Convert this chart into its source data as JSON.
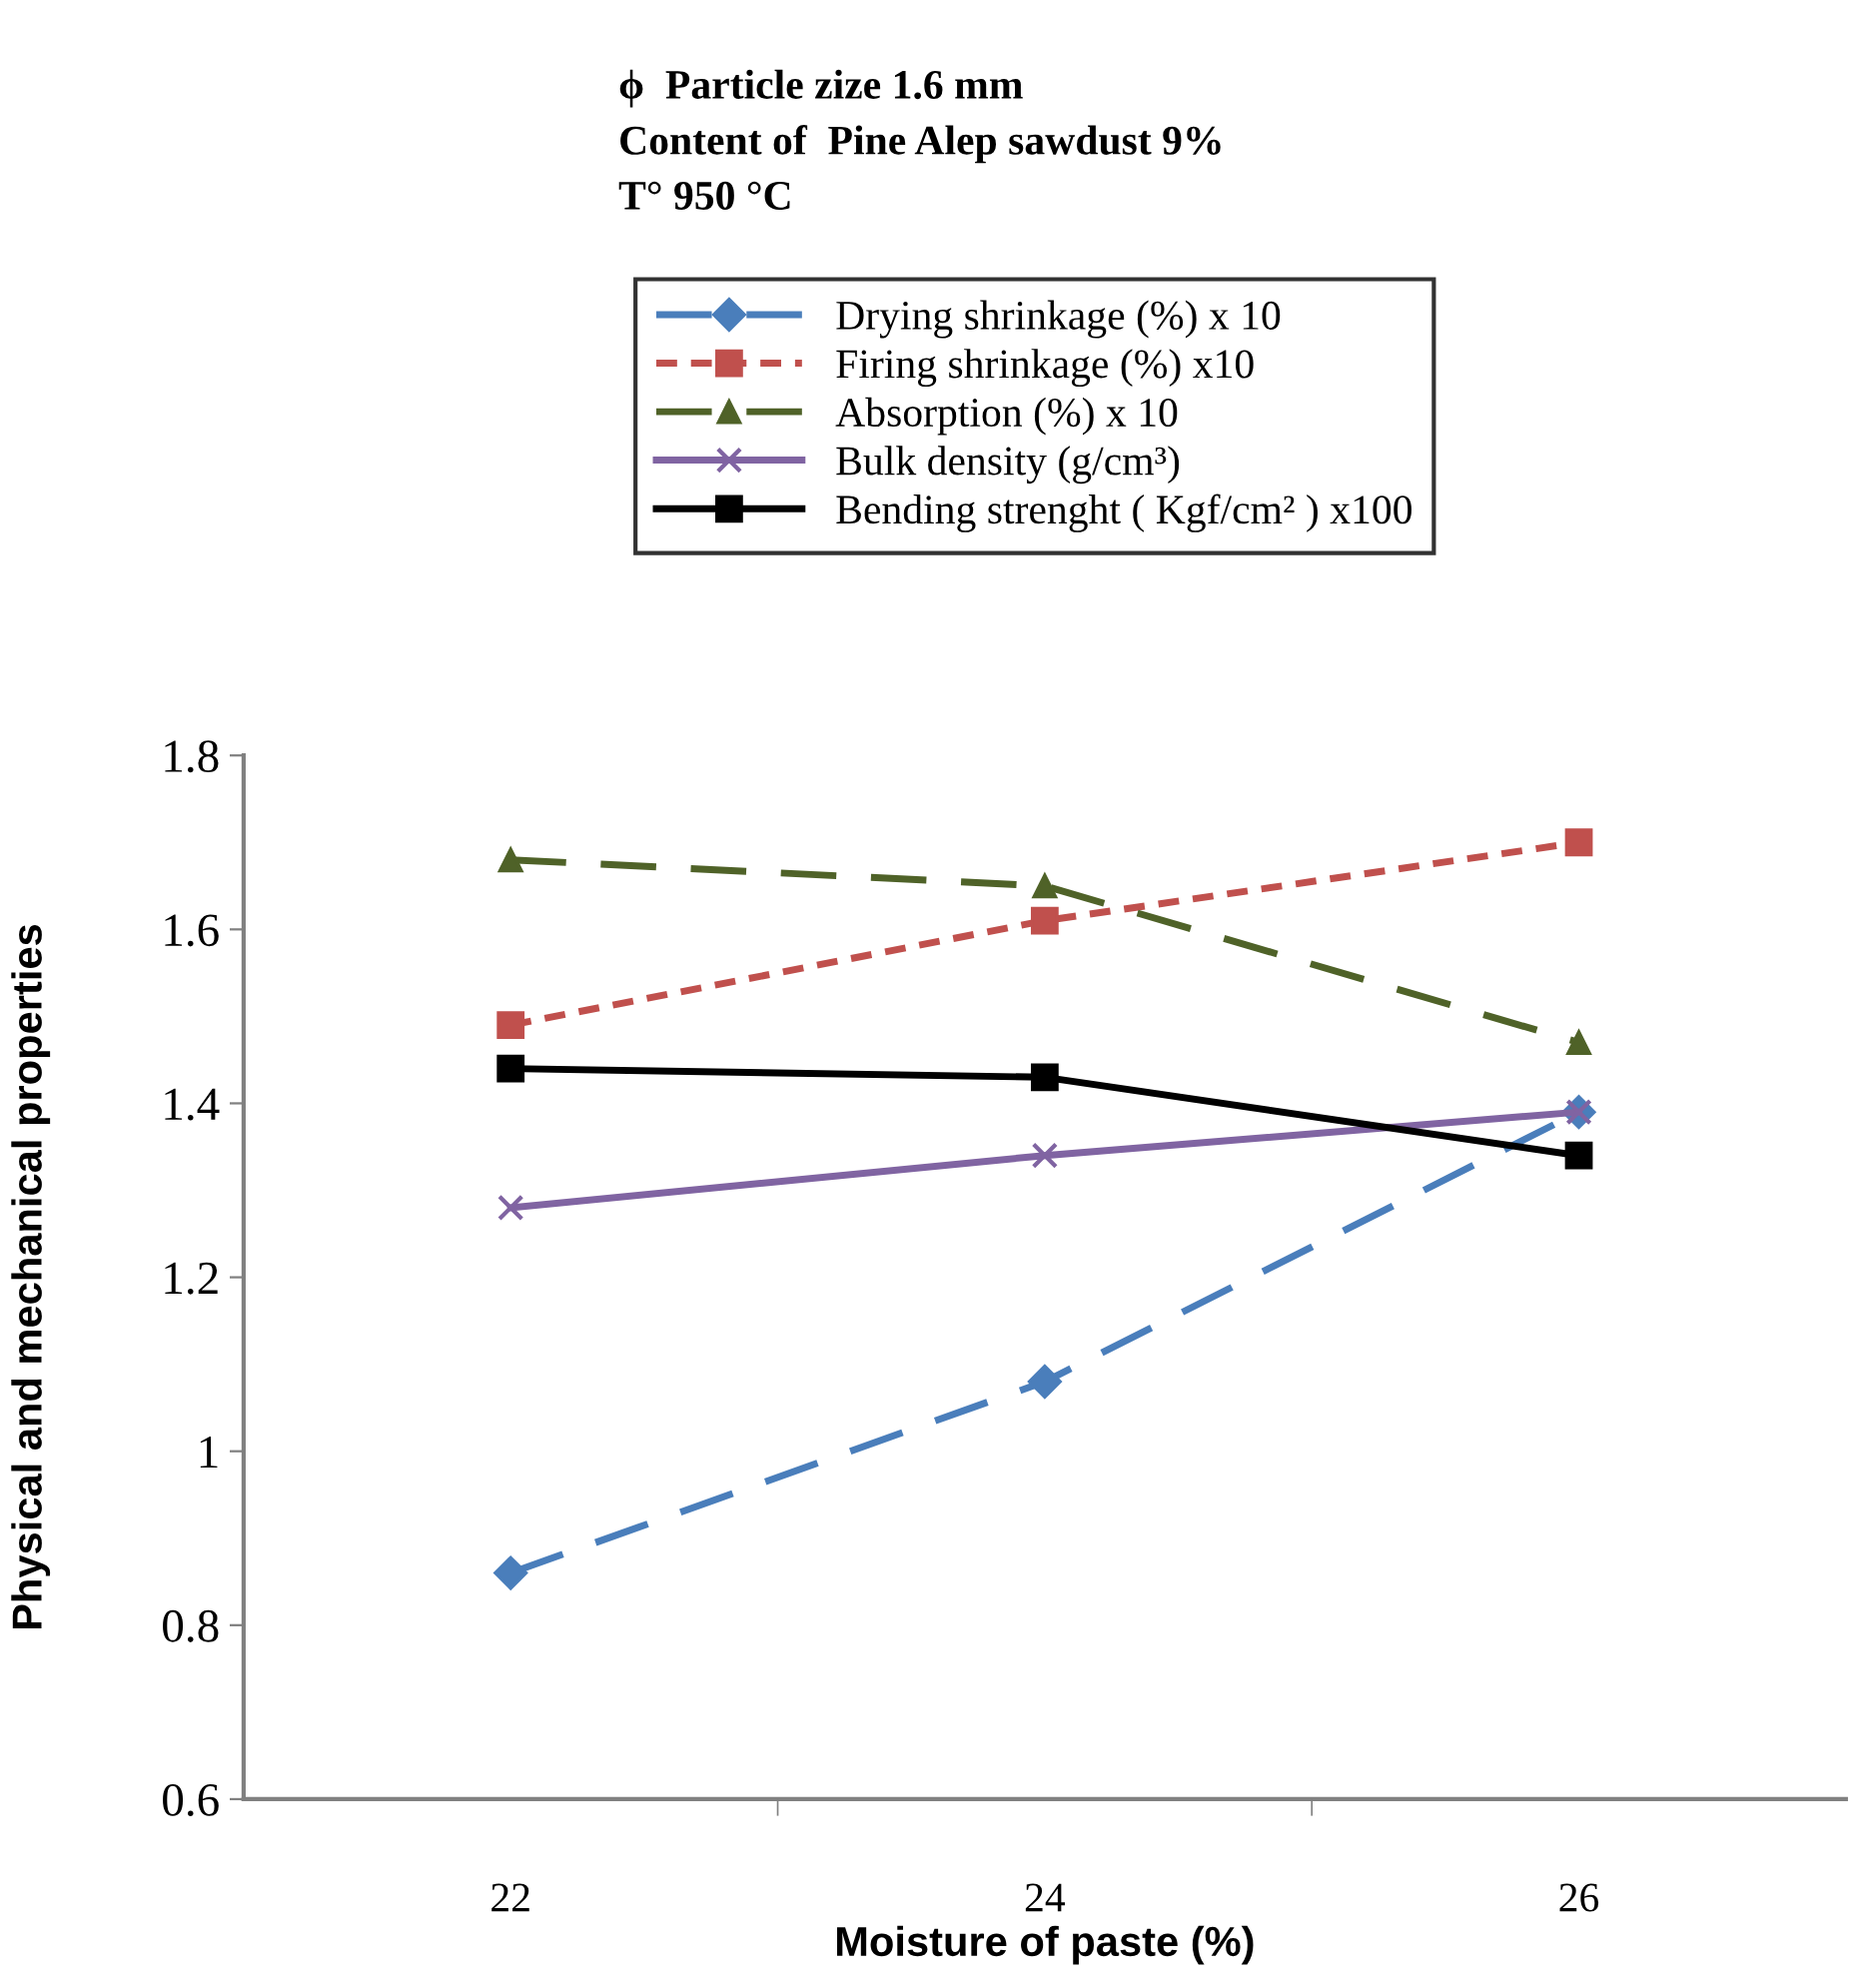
{
  "chart_data": {
    "type": "line",
    "title": "ϕ  Particle zize 1.6 mm\nContent of  Pine Alep sawdust 9%\nT° 950 °C",
    "xlabel": "Moisture of paste (%)",
    "ylabel": "Physical and mechanical properties",
    "categories": [
      "22",
      "24",
      "26"
    ],
    "ylim": [
      0.6,
      1.8
    ],
    "yticks": [
      0.6,
      0.8,
      1,
      1.2,
      1.4,
      1.6,
      1.8
    ],
    "legend": "top",
    "grid": false,
    "series": [
      {
        "name": "Drying shrinkage (%) x 10",
        "color": "#4a7ebb",
        "marker": "diamond",
        "line_style": "dashed",
        "values": [
          0.86,
          1.08,
          1.39
        ]
      },
      {
        "name": "Firing shrinkage (%) x10",
        "color": "#c0504d",
        "marker": "square",
        "line_style": "dotted",
        "values": [
          1.49,
          1.61,
          1.7
        ]
      },
      {
        "name": "Absorption (%) x 10",
        "color": "#4f6228",
        "marker": "triangle",
        "line_style": "dashed",
        "values": [
          1.68,
          1.65,
          1.47
        ]
      },
      {
        "name": "Bulk density (g/cm³)",
        "color": "#8064a2",
        "marker": "cross",
        "line_style": "solid",
        "values": [
          1.28,
          1.34,
          1.39
        ]
      },
      {
        "name": "Bending strenght ( Kgf/cm² ) x100",
        "color": "#000000",
        "marker": "square",
        "line_style": "solid",
        "values": [
          1.44,
          1.43,
          1.34
        ]
      }
    ]
  }
}
